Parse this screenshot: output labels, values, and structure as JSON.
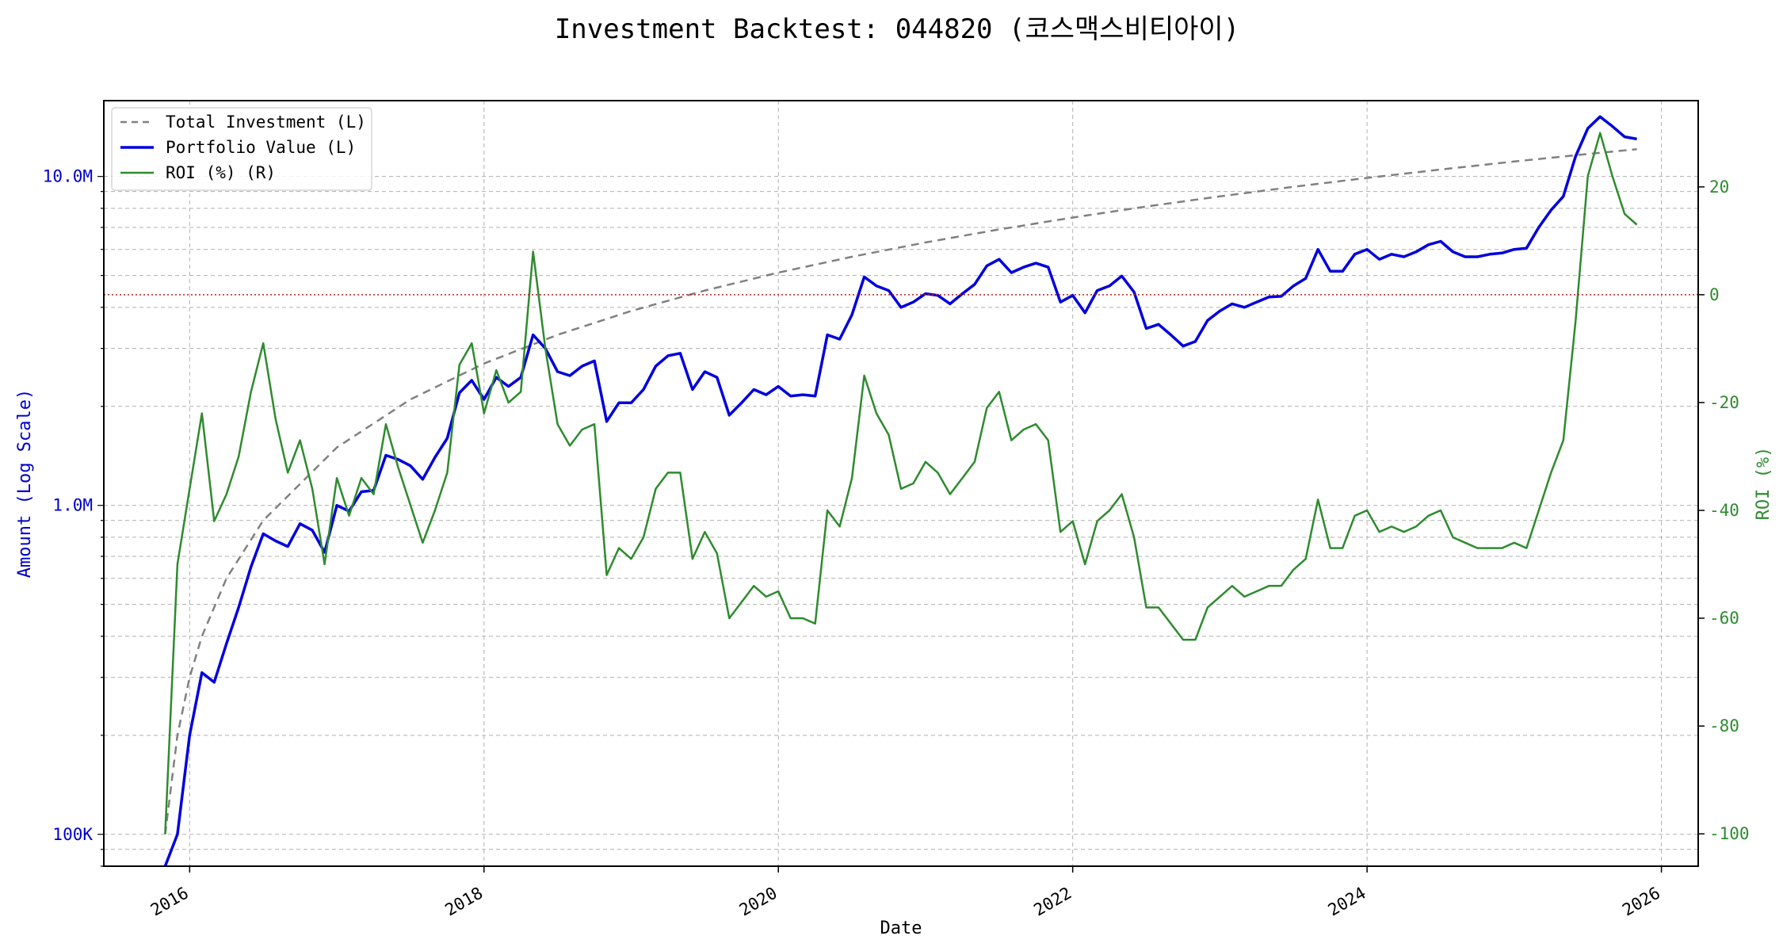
{
  "chart_data": {
    "type": "line",
    "title": "Investment Backtest: 044820 (코스맥스비티아이)",
    "xlabel": "Date",
    "ylabel_left": "Amount (Log Scale)",
    "ylabel_right": "ROI (%)",
    "x_ticks": [
      "2016",
      "2018",
      "2020",
      "2022",
      "2024",
      "2026"
    ],
    "y_left_ticks": [
      "100K",
      "1.0M",
      "10.0M"
    ],
    "y_left_scale": "log",
    "y_left_lim": [
      80000,
      17000000
    ],
    "y_right_ticks": [
      "-100",
      "-80",
      "-60",
      "-40",
      "-20",
      "0",
      "20"
    ],
    "y_right_lim": [
      -106,
      36
    ],
    "x_lim": [
      "2015-06",
      "2026-04"
    ],
    "grid": true,
    "zero_line_color": "#b22222",
    "legend_position": "upper left",
    "series": [
      {
        "name": "Total Investment (L)",
        "axis": "left",
        "style": "dashed",
        "color": "#808080",
        "x": [
          "2015-11",
          "2015-12",
          "2016-01",
          "2016-02",
          "2016-04",
          "2016-07",
          "2017-01",
          "2017-07",
          "2018-01",
          "2018-07",
          "2019-01",
          "2019-07",
          "2020-01",
          "2020-07",
          "2021-01",
          "2021-07",
          "2022-01",
          "2022-07",
          "2023-01",
          "2023-07",
          "2024-01",
          "2024-07",
          "2025-01",
          "2025-07",
          "2025-11"
        ],
        "values": [
          100000,
          200000,
          300000,
          400000,
          600000,
          900000,
          1500000,
          2100000,
          2700000,
          3300000,
          3900000,
          4500000,
          5100000,
          5700000,
          6300000,
          6900000,
          7500000,
          8100000,
          8700000,
          9300000,
          9900000,
          10500000,
          11100000,
          11700000,
          12100000
        ]
      },
      {
        "name": "Portfolio Value (L)",
        "axis": "left",
        "style": "solid",
        "color": "#0000dd",
        "x": [
          "2015-11",
          "2015-12",
          "2016-01",
          "2016-02",
          "2016-03",
          "2016-04",
          "2016-05",
          "2016-06",
          "2016-07",
          "2016-08",
          "2016-09",
          "2016-10",
          "2016-11",
          "2016-12",
          "2017-01",
          "2017-02",
          "2017-03",
          "2017-04",
          "2017-05",
          "2017-06",
          "2017-07",
          "2017-08",
          "2017-09",
          "2017-10",
          "2017-11",
          "2017-12",
          "2018-01",
          "2018-02",
          "2018-03",
          "2018-04",
          "2018-05",
          "2018-06",
          "2018-07",
          "2018-08",
          "2018-09",
          "2018-10",
          "2018-11",
          "2018-12",
          "2019-01",
          "2019-02",
          "2019-03",
          "2019-04",
          "2019-05",
          "2019-06",
          "2019-07",
          "2019-08",
          "2019-09",
          "2019-10",
          "2019-11",
          "2019-12",
          "2020-01",
          "2020-02",
          "2020-03",
          "2020-04",
          "2020-05",
          "2020-06",
          "2020-07",
          "2020-08",
          "2020-09",
          "2020-10",
          "2020-11",
          "2020-12",
          "2021-01",
          "2021-02",
          "2021-03",
          "2021-04",
          "2021-05",
          "2021-06",
          "2021-07",
          "2021-08",
          "2021-09",
          "2021-10",
          "2021-11",
          "2021-12",
          "2022-01",
          "2022-02",
          "2022-03",
          "2022-04",
          "2022-05",
          "2022-06",
          "2022-07",
          "2022-08",
          "2022-09",
          "2022-10",
          "2022-11",
          "2022-12",
          "2023-01",
          "2023-02",
          "2023-03",
          "2023-04",
          "2023-05",
          "2023-06",
          "2023-07",
          "2023-08",
          "2023-09",
          "2023-10",
          "2023-11",
          "2023-12",
          "2024-01",
          "2024-02",
          "2024-03",
          "2024-04",
          "2024-05",
          "2024-06",
          "2024-07",
          "2024-08",
          "2024-09",
          "2024-10",
          "2024-11",
          "2024-12",
          "2025-01",
          "2025-02",
          "2025-03",
          "2025-04",
          "2025-05",
          "2025-06",
          "2025-07",
          "2025-08",
          "2025-09",
          "2025-10",
          "2025-11"
        ],
        "values": [
          70000,
          100000,
          200000,
          310000,
          290000,
          380000,
          490000,
          650000,
          820000,
          780000,
          750000,
          880000,
          840000,
          720000,
          1000000,
          960000,
          1100000,
          1110000,
          1420000,
          1380000,
          1320000,
          1200000,
          1400000,
          1600000,
          2200000,
          2400000,
          2100000,
          2450000,
          2300000,
          2450000,
          3300000,
          3000000,
          2550000,
          2480000,
          2650000,
          2750000,
          1800000,
          2050000,
          2050000,
          2250000,
          2650000,
          2850000,
          2900000,
          2250000,
          2550000,
          2450000,
          1880000,
          2050000,
          2250000,
          2170000,
          2300000,
          2150000,
          2170000,
          2150000,
          3300000,
          3200000,
          3800000,
          4950000,
          4650000,
          4500000,
          4000000,
          4150000,
          4400000,
          4350000,
          4100000,
          4400000,
          4700000,
          5350000,
          5600000,
          5100000,
          5300000,
          5450000,
          5300000,
          4150000,
          4350000,
          3850000,
          4500000,
          4650000,
          4980000,
          4450000,
          3450000,
          3550000,
          3300000,
          3050000,
          3150000,
          3650000,
          3900000,
          4100000,
          4000000,
          4150000,
          4300000,
          4320000,
          4650000,
          4900000,
          6000000,
          5150000,
          5150000,
          5800000,
          6000000,
          5600000,
          5800000,
          5700000,
          5900000,
          6200000,
          6350000,
          5900000,
          5700000,
          5700000,
          5800000,
          5850000,
          6000000,
          6050000,
          7000000,
          7900000,
          8700000,
          11500000,
          14000000,
          15200000,
          14200000,
          13200000,
          13000000
        ]
      },
      {
        "name": "ROI (%) (R)",
        "axis": "right",
        "style": "solid",
        "color": "#2e8b2e",
        "x": [
          "2015-11",
          "2015-12",
          "2016-01",
          "2016-02",
          "2016-03",
          "2016-04",
          "2016-05",
          "2016-06",
          "2016-07",
          "2016-08",
          "2016-09",
          "2016-10",
          "2016-11",
          "2016-12",
          "2017-01",
          "2017-02",
          "2017-03",
          "2017-04",
          "2017-05",
          "2017-06",
          "2017-07",
          "2017-08",
          "2017-09",
          "2017-10",
          "2017-11",
          "2017-12",
          "2018-01",
          "2018-02",
          "2018-03",
          "2018-04",
          "2018-05",
          "2018-06",
          "2018-07",
          "2018-08",
          "2018-09",
          "2018-10",
          "2018-11",
          "2018-12",
          "2019-01",
          "2019-02",
          "2019-03",
          "2019-04",
          "2019-05",
          "2019-06",
          "2019-07",
          "2019-08",
          "2019-09",
          "2019-10",
          "2019-11",
          "2019-12",
          "2020-01",
          "2020-02",
          "2020-03",
          "2020-04",
          "2020-05",
          "2020-06",
          "2020-07",
          "2020-08",
          "2020-09",
          "2020-10",
          "2020-11",
          "2020-12",
          "2021-01",
          "2021-02",
          "2021-03",
          "2021-04",
          "2021-05",
          "2021-06",
          "2021-07",
          "2021-08",
          "2021-09",
          "2021-10",
          "2021-11",
          "2021-12",
          "2022-01",
          "2022-02",
          "2022-03",
          "2022-04",
          "2022-05",
          "2022-06",
          "2022-07",
          "2022-08",
          "2022-09",
          "2022-10",
          "2022-11",
          "2022-12",
          "2023-01",
          "2023-02",
          "2023-03",
          "2023-04",
          "2023-05",
          "2023-06",
          "2023-07",
          "2023-08",
          "2023-09",
          "2023-10",
          "2023-11",
          "2023-12",
          "2024-01",
          "2024-02",
          "2024-03",
          "2024-04",
          "2024-05",
          "2024-06",
          "2024-07",
          "2024-08",
          "2024-09",
          "2024-10",
          "2024-11",
          "2024-12",
          "2025-01",
          "2025-02",
          "2025-03",
          "2025-04",
          "2025-05",
          "2025-06",
          "2025-07",
          "2025-08",
          "2025-09",
          "2025-10",
          "2025-11"
        ],
        "values": [
          -100,
          -50,
          -36,
          -22,
          -42,
          -37,
          -30,
          -18,
          -9,
          -23,
          -33,
          -27,
          -36,
          -50,
          -34,
          -41,
          -34,
          -37,
          -24,
          -32,
          -39,
          -46,
          -40,
          -33,
          -13,
          -9,
          -22,
          -14,
          -20,
          -18,
          8,
          -10,
          -24,
          -28,
          -25,
          -24,
          -52,
          -47,
          -49,
          -45,
          -36,
          -33,
          -33,
          -49,
          -44,
          -48,
          -60,
          -57,
          -54,
          -56,
          -55,
          -60,
          -60,
          -61,
          -40,
          -43,
          -34,
          -15,
          -22,
          -26,
          -36,
          -35,
          -31,
          -33,
          -37,
          -34,
          -31,
          -21,
          -18,
          -27,
          -25,
          -24,
          -27,
          -44,
          -42,
          -50,
          -42,
          -40,
          -37,
          -45,
          -58,
          -58,
          -61,
          -64,
          -64,
          -58,
          -56,
          -54,
          -56,
          -55,
          -54,
          -54,
          -51,
          -49,
          -38,
          -47,
          -47,
          -41,
          -40,
          -44,
          -43,
          -44,
          -43,
          -41,
          -40,
          -45,
          -46,
          -47,
          -47,
          -47,
          -46,
          -47,
          -40,
          -33,
          -27,
          -5,
          22,
          30,
          22,
          15,
          13
        ]
      }
    ]
  }
}
